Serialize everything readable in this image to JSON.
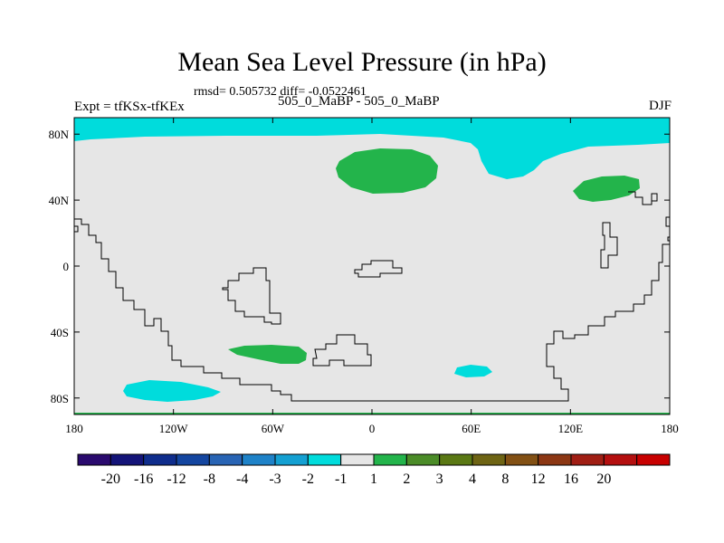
{
  "title": "Mean Sea Level Pressure (in hPa)",
  "stats": "rmsd= 0.505732 diff= -0.0522461",
  "left_label": "Expt = tfKSx-tfKEx",
  "center_label": "505_0_MaBP - 505_0_MaBP",
  "right_label": "DJF",
  "background_color": "#e6e6e6",
  "map": {
    "lon_range": [
      -180,
      180
    ],
    "lat_range": [
      -90,
      90
    ],
    "x_ticks": [
      {
        "value": -180,
        "label": "180"
      },
      {
        "value": -120,
        "label": "120W"
      },
      {
        "value": -60,
        "label": "60W"
      },
      {
        "value": 0,
        "label": "0"
      },
      {
        "value": 60,
        "label": "60E"
      },
      {
        "value": 120,
        "label": "120E"
      },
      {
        "value": 180,
        "label": "180"
      }
    ],
    "y_ticks": [
      {
        "value": 80,
        "label": "80N"
      },
      {
        "value": 40,
        "label": "40N"
      },
      {
        "value": 0,
        "label": "0"
      },
      {
        "value": -40,
        "label": "40S"
      },
      {
        "value": -80,
        "label": "80S"
      }
    ]
  },
  "colorbar": {
    "colors": [
      "#2a0a6e",
      "#141478",
      "#0f2d8c",
      "#1446a0",
      "#2864b4",
      "#1e82c8",
      "#14a0d2",
      "#00dcdc",
      "#e6e6e6",
      "#23b44b",
      "#4b8c28",
      "#5a7814",
      "#6e6414",
      "#825014",
      "#8c3714",
      "#a01e14",
      "#b40f0f",
      "#c80000"
    ],
    "labels": [
      "-20",
      "-16",
      "-12",
      "-8",
      "-4",
      "-3",
      "-2",
      "-1",
      "1",
      "2",
      "3",
      "4",
      "8",
      "12",
      "16",
      "20"
    ]
  }
}
